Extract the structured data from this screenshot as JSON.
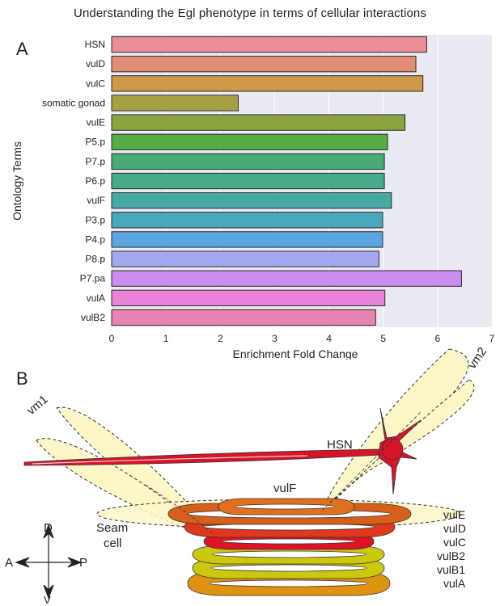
{
  "title": "Understanding the Egl phenotype in terms of cellular interactions",
  "panel_a_letter": "A",
  "panel_b_letter": "B",
  "chart_data": {
    "type": "bar",
    "orientation": "horizontal",
    "categories": [
      "HSN",
      "vulD",
      "vulC",
      "somatic gonad",
      "vulE",
      "P5.p",
      "P7.p",
      "P6.p",
      "vulF",
      "P3.p",
      "P4.p",
      "P8.p",
      "P7.pa",
      "vulA",
      "vulB2"
    ],
    "values": [
      5.8,
      5.6,
      5.73,
      2.33,
      5.4,
      5.08,
      5.02,
      5.02,
      5.15,
      4.99,
      4.99,
      4.92,
      6.44,
      5.03,
      4.86
    ],
    "colors": [
      "#ea8e96",
      "#e38d74",
      "#cd9848",
      "#a7a042",
      "#8aa43e",
      "#55ad45",
      "#46ac74",
      "#46ab8b",
      "#47aaa2",
      "#49a8bd",
      "#5aa6e1",
      "#a3a8ee",
      "#c98eef",
      "#e883d9",
      "#e883b4"
    ],
    "xlabel": "Enrichment Fold Change",
    "ylabel": "Ontology Terms",
    "xlim": [
      0,
      7
    ],
    "xticks": [
      "0",
      "1",
      "2",
      "3",
      "4",
      "5",
      "6",
      "7"
    ],
    "grid": true,
    "background": "#eaeaf2"
  },
  "diagram": {
    "labels": {
      "vm1": "vm1",
      "vm2": "vm2",
      "hsn": "HSN",
      "vulf": "vulF",
      "seam": "Seam\ncell",
      "seam_line1": "Seam",
      "seam_line2": "cell"
    },
    "ring_labels": [
      "vulE",
      "vulD",
      "vulC",
      "vulB2",
      "vulB1",
      "vulA"
    ],
    "compass": {
      "d": "D",
      "v": "V",
      "a": "A",
      "p": "P"
    },
    "colors": {
      "muscle_fill": "#fdf7c8",
      "hsn": "#d7152a",
      "vulE": "#d4601a",
      "vulD": "#e0381c",
      "vulC": "#dc1424",
      "vulB": "#ccc810",
      "vulA": "#dd9210"
    }
  }
}
